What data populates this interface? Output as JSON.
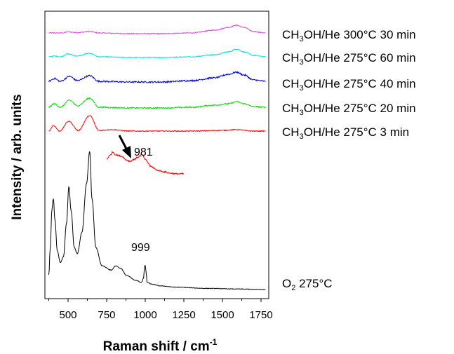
{
  "chart_data": {
    "type": "line",
    "xlabel": "Raman shift / cm",
    "xlabel_sup": "-1",
    "ylabel": "Intensity / arb. units",
    "xlim": [
      350,
      1800
    ],
    "x_ticks": [
      "500",
      "750",
      "1000",
      "1250",
      "1500",
      "1750"
    ],
    "x_tick_values": [
      500,
      750,
      1000,
      1250,
      1500,
      1750
    ],
    "grid": false,
    "series": [
      {
        "label_parts": [
          "CH",
          "3",
          "OH/He 300°C 30 min"
        ],
        "color": "#e040e0",
        "noise": 0.6,
        "points": [
          [
            375,
            0
          ],
          [
            460,
            0
          ],
          [
            500,
            1.5
          ],
          [
            560,
            0.5
          ],
          [
            640,
            2
          ],
          [
            700,
            0
          ],
          [
            900,
            -1
          ],
          [
            1100,
            -1
          ],
          [
            1300,
            0
          ],
          [
            1450,
            4
          ],
          [
            1540,
            8
          ],
          [
            1590,
            11
          ],
          [
            1640,
            8
          ],
          [
            1700,
            2
          ],
          [
            1780,
            0
          ]
        ]
      },
      {
        "label_parts": [
          "CH",
          "3",
          "OH/He 275°C 60 min"
        ],
        "color": "#00e0e0",
        "noise": 0.6,
        "points": [
          [
            375,
            0
          ],
          [
            410,
            1
          ],
          [
            450,
            0
          ],
          [
            500,
            4
          ],
          [
            560,
            1
          ],
          [
            640,
            5
          ],
          [
            700,
            0
          ],
          [
            900,
            -1
          ],
          [
            1100,
            -1
          ],
          [
            1300,
            0
          ],
          [
            1450,
            3
          ],
          [
            1540,
            7
          ],
          [
            1590,
            11
          ],
          [
            1640,
            7
          ],
          [
            1700,
            2
          ],
          [
            1780,
            0
          ]
        ]
      },
      {
        "label_parts": [
          "CH",
          "3",
          "OH/He 275°C 40 min"
        ],
        "color": "#0000cc",
        "noise": 1.1,
        "points": [
          [
            375,
            0
          ],
          [
            410,
            4
          ],
          [
            450,
            0
          ],
          [
            510,
            7
          ],
          [
            560,
            1
          ],
          [
            640,
            8
          ],
          [
            700,
            0
          ],
          [
            900,
            -1
          ],
          [
            1100,
            -1
          ],
          [
            1300,
            1
          ],
          [
            1450,
            5
          ],
          [
            1540,
            10
          ],
          [
            1590,
            13
          ],
          [
            1640,
            9
          ],
          [
            1700,
            2
          ],
          [
            1780,
            0
          ]
        ]
      },
      {
        "label_parts": [
          "CH",
          "3",
          "OH/He 275°C 20 min"
        ],
        "color": "#00e000",
        "noise": 0.9,
        "points": [
          [
            375,
            0
          ],
          [
            410,
            5
          ],
          [
            450,
            0
          ],
          [
            510,
            10
          ],
          [
            560,
            2
          ],
          [
            640,
            13
          ],
          [
            700,
            0
          ],
          [
            900,
            -1
          ],
          [
            1100,
            -1
          ],
          [
            1300,
            0
          ],
          [
            1450,
            3
          ],
          [
            1540,
            5
          ],
          [
            1590,
            8
          ],
          [
            1640,
            5
          ],
          [
            1700,
            1
          ],
          [
            1780,
            0
          ]
        ]
      },
      {
        "label_parts": [
          "CH",
          "3",
          "OH/He 275°C 3 min"
        ],
        "color": "#ff0000",
        "noise": 0.6,
        "points": [
          [
            375,
            0
          ],
          [
            405,
            8
          ],
          [
            445,
            0
          ],
          [
            505,
            14
          ],
          [
            565,
            1
          ],
          [
            640,
            22
          ],
          [
            700,
            1
          ],
          [
            780,
            2
          ],
          [
            900,
            0
          ],
          [
            1100,
            0
          ],
          [
            1300,
            0
          ],
          [
            1500,
            1
          ],
          [
            1590,
            2
          ],
          [
            1700,
            0
          ],
          [
            1780,
            0
          ]
        ]
      },
      {
        "label_parts": [
          "O",
          "2",
          " 275°C"
        ],
        "color": "#000000",
        "noise": 0.4,
        "points": [
          [
            375,
            25
          ],
          [
            385,
            70
          ],
          [
            395,
            132
          ],
          [
            405,
            150
          ],
          [
            415,
            115
          ],
          [
            430,
            65
          ],
          [
            450,
            45
          ],
          [
            470,
            55
          ],
          [
            490,
            110
          ],
          [
            505,
            170
          ],
          [
            520,
            130
          ],
          [
            540,
            70
          ],
          [
            560,
            60
          ],
          [
            590,
            95
          ],
          [
            620,
            175
          ],
          [
            640,
            228
          ],
          [
            655,
            150
          ],
          [
            680,
            70
          ],
          [
            720,
            40
          ],
          [
            780,
            33
          ],
          [
            810,
            40
          ],
          [
            840,
            36
          ],
          [
            880,
            24
          ],
          [
            940,
            16
          ],
          [
            975,
            13
          ],
          [
            988,
            19
          ],
          [
            996,
            38
          ],
          [
            1000,
            42
          ],
          [
            1005,
            30
          ],
          [
            1012,
            13
          ],
          [
            1040,
            10
          ],
          [
            1100,
            7
          ],
          [
            1200,
            5
          ],
          [
            1400,
            3
          ],
          [
            1600,
            2
          ],
          [
            1780,
            1
          ]
        ]
      },
      {
        "label_parts": [
          "",
          "",
          ""
        ],
        "color": "#ff0000",
        "noise": 1.0,
        "points": [
          [
            750,
            3
          ],
          [
            770,
            8
          ],
          [
            790,
            13
          ],
          [
            810,
            9
          ],
          [
            850,
            7
          ],
          [
            875,
            2
          ],
          [
            900,
            0
          ],
          [
            930,
            3
          ],
          [
            955,
            6
          ],
          [
            975,
            9
          ],
          [
            985,
            8
          ],
          [
            1000,
            2
          ],
          [
            1040,
            -8
          ],
          [
            1080,
            -13
          ],
          [
            1120,
            -15
          ],
          [
            1160,
            -17
          ],
          [
            1200,
            -18
          ],
          [
            1250,
            -18
          ]
        ]
      }
    ],
    "annotations": [
      {
        "text": "981"
      },
      {
        "text": "999"
      }
    ]
  }
}
